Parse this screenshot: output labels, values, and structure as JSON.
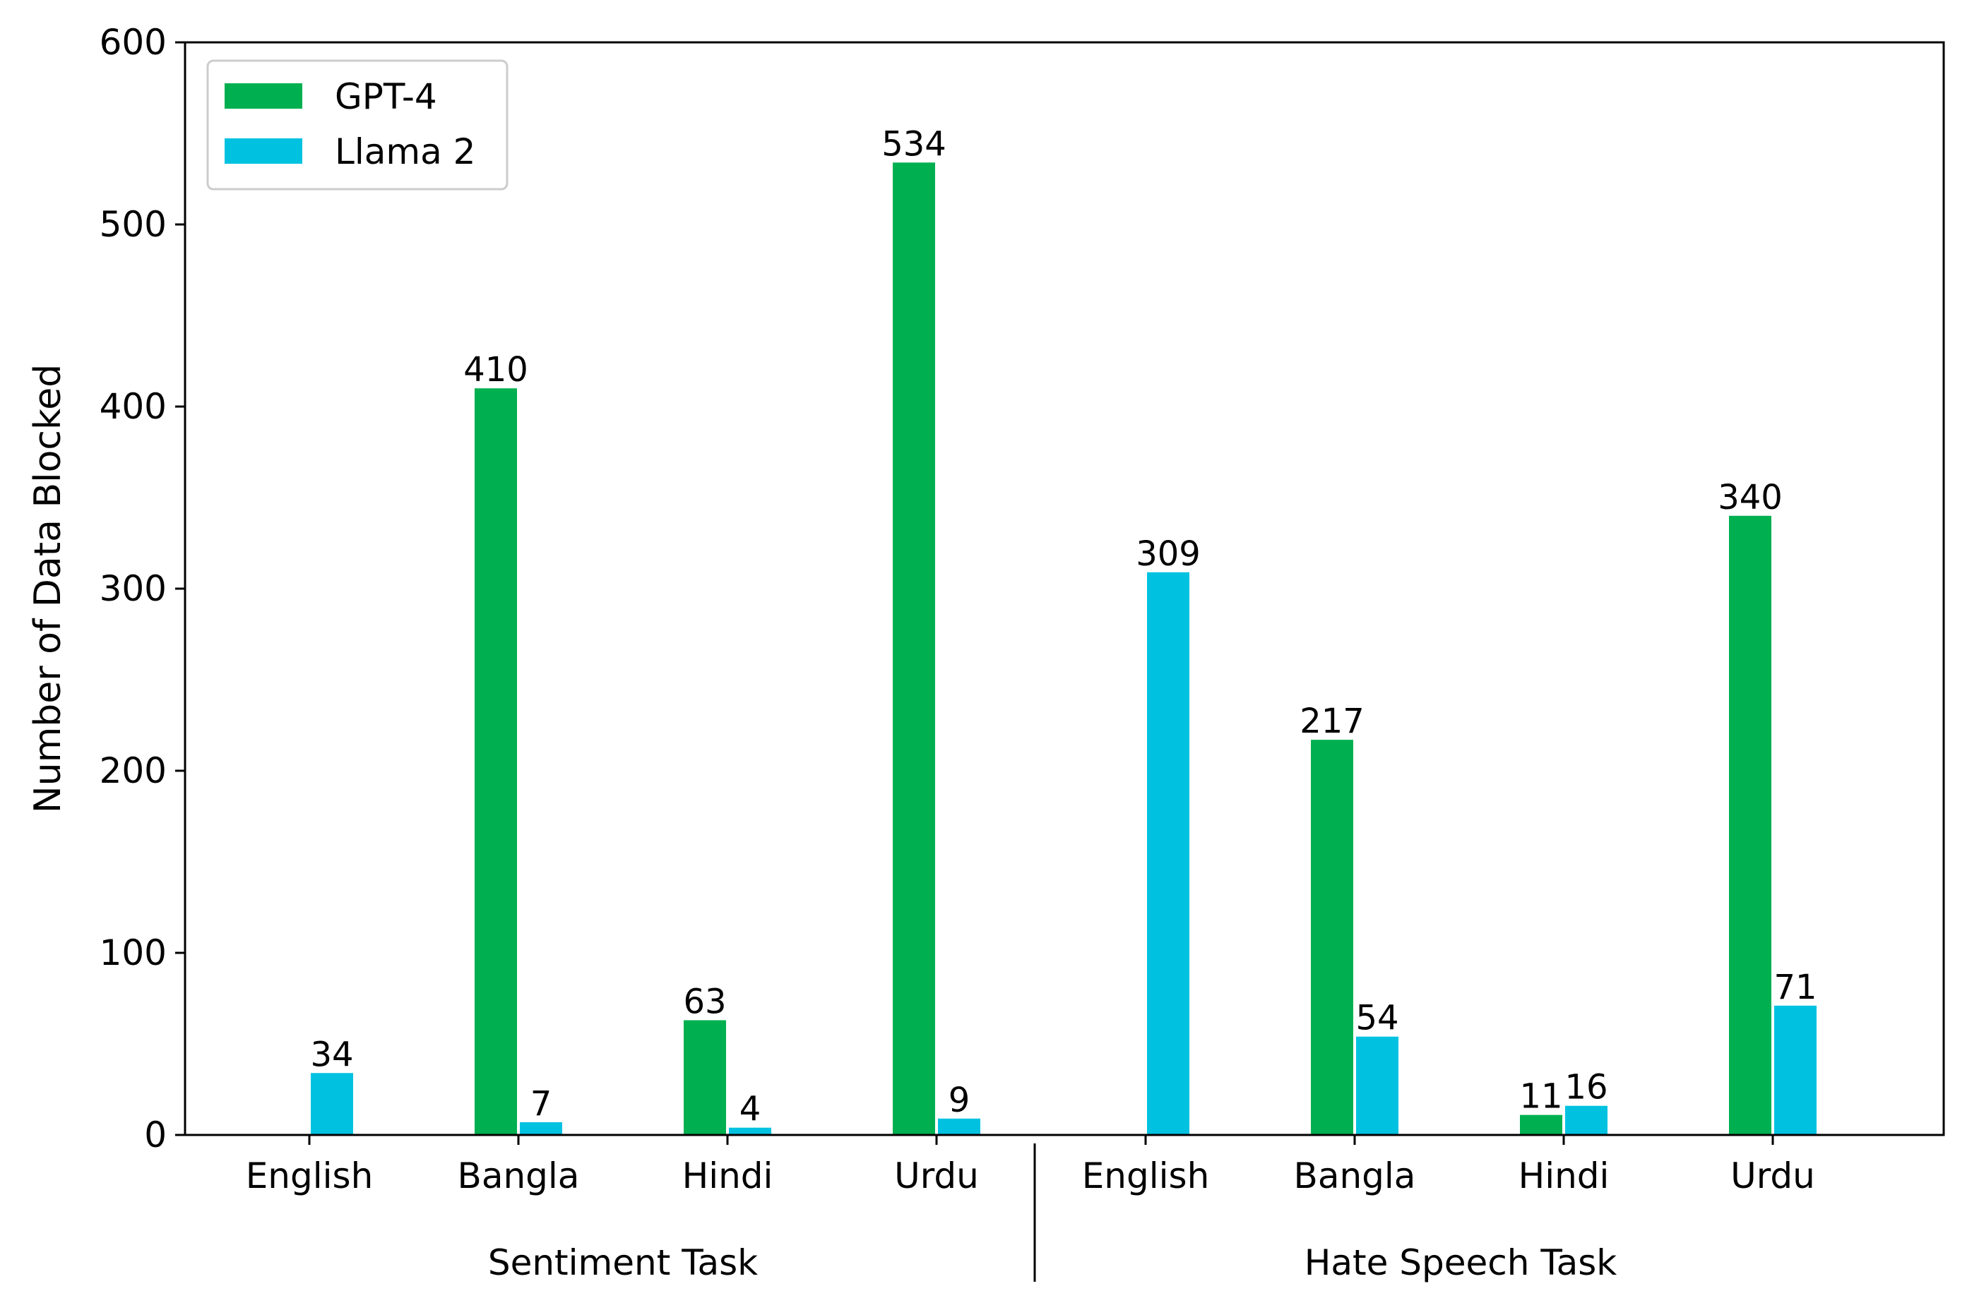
{
  "chart_data": {
    "type": "bar",
    "title": "",
    "xlabel": "",
    "ylabel": "Number of Data Blocked",
    "ylim": [
      0,
      600
    ],
    "yticks": [
      0,
      100,
      200,
      300,
      400,
      500,
      600
    ],
    "grid": false,
    "legend_position": "top-left",
    "categories": [
      "English",
      "Bangla",
      "Hindi",
      "Urdu",
      "English",
      "Bangla",
      "Hindi",
      "Urdu"
    ],
    "groups": [
      {
        "label": "Sentiment Task",
        "categories": [
          "English",
          "Bangla",
          "Hindi",
          "Urdu"
        ]
      },
      {
        "label": "Hate Speech Task",
        "categories": [
          "English",
          "Bangla",
          "Hindi",
          "Urdu"
        ]
      }
    ],
    "series": [
      {
        "name": "GPT-4",
        "color": "#00b050",
        "values": [
          0,
          410,
          63,
          534,
          0,
          217,
          11,
          340
        ],
        "labels": [
          "",
          "410",
          "63",
          "534",
          "",
          "217",
          "11",
          "340"
        ]
      },
      {
        "name": "Llama 2",
        "color": "#00c2e0",
        "values": [
          34,
          7,
          4,
          9,
          309,
          54,
          16,
          71
        ],
        "labels": [
          "34",
          "7",
          "4",
          "9",
          "309",
          "54",
          "16",
          "71"
        ]
      }
    ]
  }
}
